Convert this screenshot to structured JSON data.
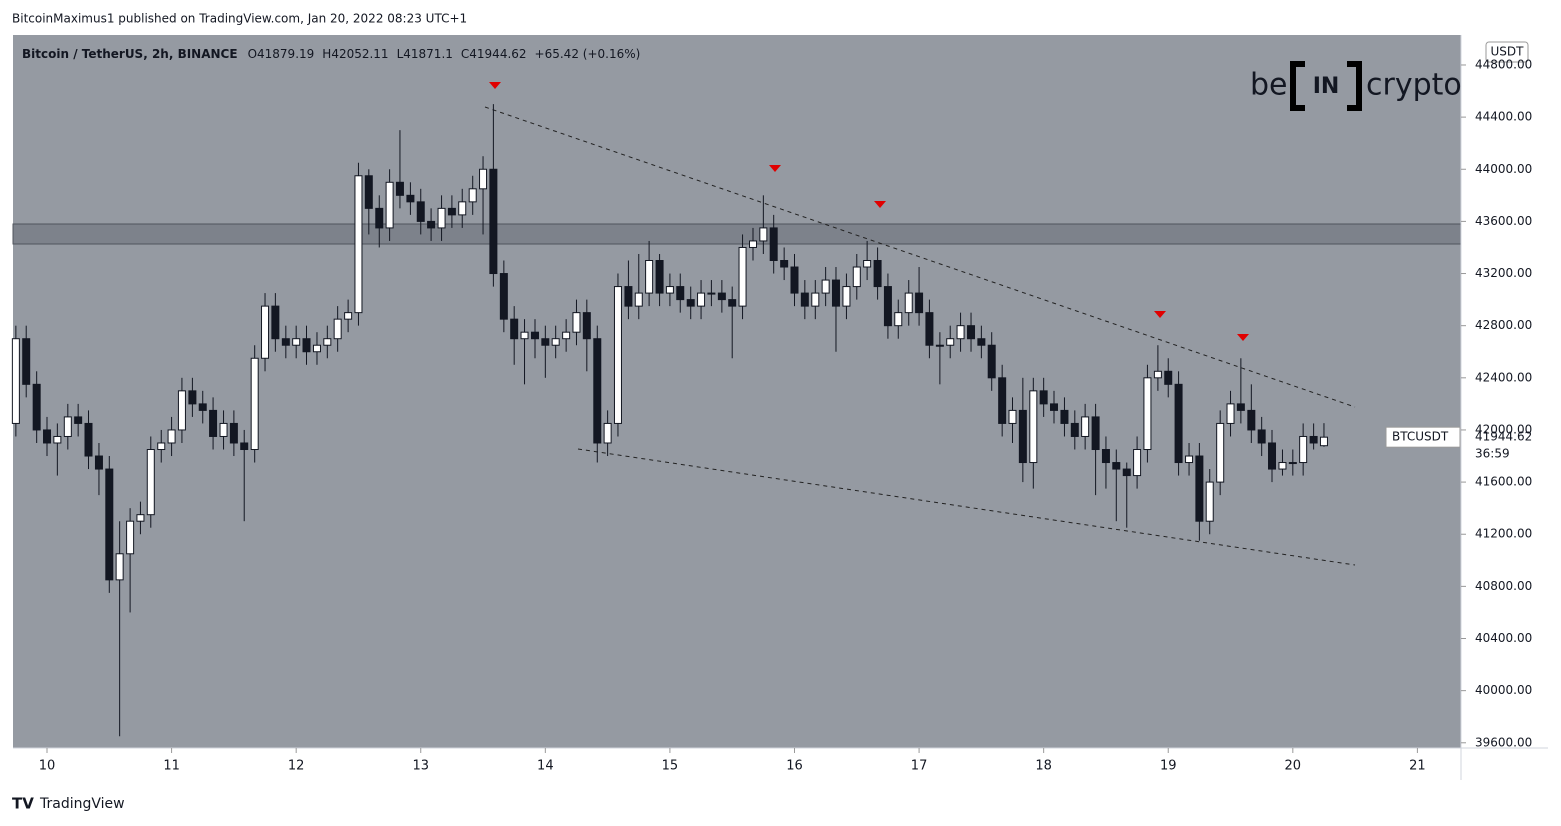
{
  "header": "BitcoinMaximus1 published on TradingView.com, Jan 20, 2022 08:23 UTC+1",
  "footer": "TradingView",
  "logo": {
    "left": "be",
    "middle": "IN",
    "right": "crypto"
  },
  "chart_data": {
    "type": "candlestick",
    "title": "Bitcoin / TetherUS, 2h, BINANCE",
    "ohlc_labels": [
      "O",
      "H",
      "L",
      "C"
    ],
    "change": "+65.42 (+0.16%)",
    "currency": "USDT",
    "symbol": "BTCUSDT",
    "countdown": "36:59",
    "up_color": "#ffffff",
    "down_color": "#131722",
    "background": "#959aa2",
    "xlim": [
      9.727,
      21.35
    ],
    "xticks": [
      10,
      11,
      12,
      13,
      14,
      15,
      16,
      17,
      18,
      19,
      20,
      21
    ],
    "ylim": [
      39560,
      45030
    ],
    "yticks": [
      {
        "value": 44800,
        "label": "44800.00"
      },
      {
        "value": 44400,
        "label": "44400.00"
      },
      {
        "value": 44000,
        "label": "44000.00"
      },
      {
        "value": 43600,
        "label": "43600.00"
      },
      {
        "value": 43200,
        "label": "43200.00"
      },
      {
        "value": 42800,
        "label": "42800.00"
      },
      {
        "value": 42400,
        "label": "42400.00"
      },
      {
        "value": 42000,
        "label": "42000.00"
      },
      {
        "value": 41600,
        "label": "41600.00"
      },
      {
        "value": 41200,
        "label": "41200.00"
      },
      {
        "value": 40800,
        "label": "40800.00"
      },
      {
        "value": 40400,
        "label": "40400.00"
      },
      {
        "value": 40000,
        "label": "40000.00"
      },
      {
        "value": 39600,
        "label": "39600.00"
      }
    ],
    "x": [
      9.75,
      9.833,
      9.917,
      10,
      10.083,
      10.167,
      10.25,
      10.333,
      10.417,
      10.5,
      10.583,
      10.667,
      10.75,
      10.833,
      10.917,
      11,
      11.083,
      11.167,
      11.25,
      11.333,
      11.417,
      11.5,
      11.583,
      11.667,
      11.75,
      11.833,
      11.917,
      12,
      12.083,
      12.167,
      12.25,
      12.333,
      12.417,
      12.5,
      12.583,
      12.667,
      12.75,
      12.833,
      12.917,
      13,
      13.083,
      13.167,
      13.25,
      13.333,
      13.417,
      13.5,
      13.583,
      13.667,
      13.75,
      13.833,
      13.917,
      14,
      14.083,
      14.167,
      14.25,
      14.333,
      14.417,
      14.5,
      14.583,
      14.667,
      14.75,
      14.833,
      14.917,
      15,
      15.083,
      15.167,
      15.25,
      15.333,
      15.417,
      15.5,
      15.583,
      15.667,
      15.75,
      15.833,
      15.917,
      16,
      16.083,
      16.167,
      16.25,
      16.333,
      16.417,
      16.5,
      16.583,
      16.667,
      16.75,
      16.833,
      16.917,
      17,
      17.083,
      17.167,
      17.25,
      17.333,
      17.417,
      17.5,
      17.583,
      17.667,
      17.75,
      17.833,
      17.917,
      18,
      18.083,
      18.167,
      18.25,
      18.333,
      18.417,
      18.5,
      18.583,
      18.667,
      18.75,
      18.833,
      18.917,
      19,
      19.083,
      19.167,
      19.25,
      19.333,
      19.417,
      19.5,
      19.583,
      19.667,
      19.75,
      19.833,
      19.917,
      20,
      20.083,
      20.167,
      20.25
    ],
    "open": [
      42050,
      42700,
      42350,
      42000,
      41900,
      41950,
      42100,
      42050,
      41800,
      41700,
      40850,
      41050,
      41300,
      41350,
      41850,
      41900,
      42000,
      42300,
      42200,
      42150,
      41950,
      42050,
      41900,
      41850,
      42550,
      42950,
      42700,
      42650,
      42700,
      42600,
      42650,
      42700,
      42850,
      42900,
      43950,
      43700,
      43550,
      43900,
      43800,
      43750,
      43600,
      43550,
      43700,
      43650,
      43750,
      43850,
      44000,
      43200,
      42850,
      42700,
      42750,
      42700,
      42650,
      42700,
      42750,
      42900,
      42700,
      41900,
      42050,
      43100,
      42950,
      43050,
      43300,
      43050,
      43100,
      43000,
      42950,
      43050,
      43050,
      43000,
      42950,
      43400,
      43450,
      43550,
      43300,
      43250,
      43050,
      42950,
      43050,
      43150,
      42950,
      43100,
      43250,
      43300,
      43100,
      42800,
      42900,
      43050,
      42900,
      42650,
      42650,
      42700,
      42800,
      42700,
      42650,
      42400,
      42050,
      42150,
      41750,
      42300,
      42200,
      42150,
      42050,
      41950,
      42100,
      41850,
      41750,
      41700,
      41650,
      41850,
      42400,
      42450,
      42350,
      41750,
      41800,
      41300,
      41600,
      42050,
      42200,
      42150,
      42000,
      41900,
      41700,
      41750,
      41750,
      41950,
      41879.19
    ],
    "high": [
      42800,
      42800,
      42450,
      42100,
      42050,
      42200,
      42200,
      42150,
      41900,
      41800,
      41300,
      41400,
      41450,
      41950,
      42000,
      42100,
      42400,
      42400,
      42300,
      42250,
      42150,
      42150,
      42000,
      42650,
      43050,
      43050,
      42800,
      42800,
      42800,
      42750,
      42800,
      42950,
      43000,
      44050,
      44000,
      43800,
      44000,
      44300,
      43900,
      43850,
      43700,
      43800,
      43800,
      43850,
      43950,
      44100,
      44500,
      43300,
      42950,
      42850,
      42850,
      42800,
      42800,
      42850,
      43000,
      43000,
      42800,
      42150,
      43200,
      43300,
      43350,
      43450,
      43350,
      43200,
      43200,
      43100,
      43150,
      43150,
      43150,
      43100,
      43500,
      43550,
      43800,
      43650,
      43400,
      43350,
      43150,
      43150,
      43250,
      43250,
      43200,
      43350,
      43450,
      43400,
      43200,
      43000,
      43150,
      43250,
      43000,
      42750,
      42800,
      42900,
      42900,
      42800,
      42750,
      42500,
      42250,
      42400,
      42400,
      42400,
      42300,
      42250,
      42150,
      42200,
      42200,
      41950,
      41850,
      41750,
      41950,
      42500,
      42650,
      42550,
      42450,
      41900,
      41900,
      41700,
      42150,
      42300,
      42550,
      42350,
      42100,
      42000,
      41850,
      41850,
      42050,
      42050,
      42052.11
    ],
    "low": [
      41950,
      42250,
      41900,
      41800,
      41650,
      41850,
      41950,
      41700,
      41500,
      40750,
      39650,
      40600,
      41200,
      41250,
      41750,
      41800,
      41900,
      42100,
      42050,
      41850,
      41850,
      41800,
      41300,
      41750,
      42450,
      42600,
      42550,
      42550,
      42500,
      42500,
      42550,
      42600,
      42750,
      42800,
      43500,
      43400,
      43450,
      43700,
      43650,
      43500,
      43450,
      43450,
      43550,
      43550,
      43650,
      43500,
      43100,
      42750,
      42500,
      42350,
      42550,
      42400,
      42550,
      42600,
      42650,
      42450,
      41750,
      41800,
      41950,
      42850,
      42850,
      42950,
      42950,
      42950,
      42900,
      42850,
      42850,
      42950,
      42900,
      42550,
      42850,
      43300,
      43350,
      43200,
      43150,
      42950,
      42850,
      42850,
      42950,
      42600,
      42850,
      43000,
      43150,
      43000,
      42700,
      42700,
      42800,
      42800,
      42550,
      42350,
      42550,
      42600,
      42600,
      42550,
      42300,
      41950,
      41900,
      41600,
      41550,
      42100,
      42050,
      41950,
      41850,
      41850,
      41500,
      41550,
      41300,
      41250,
      41550,
      41750,
      42300,
      42250,
      41650,
      41650,
      41150,
      41200,
      41500,
      41950,
      42050,
      41900,
      41800,
      41600,
      41650,
      41650,
      41650,
      41850,
      41871.1
    ],
    "close": [
      42700,
      42350,
      42000,
      41900,
      41950,
      42100,
      42050,
      41800,
      41700,
      40850,
      41050,
      41300,
      41350,
      41850,
      41900,
      42000,
      42300,
      42200,
      42150,
      41950,
      42050,
      41900,
      41850,
      42550,
      42950,
      42700,
      42650,
      42700,
      42600,
      42650,
      42700,
      42850,
      42900,
      43950,
      43700,
      43550,
      43900,
      43800,
      43750,
      43600,
      43550,
      43700,
      43650,
      43750,
      43850,
      44000,
      43200,
      42850,
      42700,
      42750,
      42700,
      42650,
      42700,
      42750,
      42900,
      42700,
      41900,
      42050,
      43100,
      42950,
      43050,
      43300,
      43050,
      43100,
      43000,
      42950,
      43050,
      43050,
      43000,
      42950,
      43400,
      43450,
      43550,
      43300,
      43250,
      43050,
      42950,
      43050,
      43150,
      42950,
      43100,
      43250,
      43300,
      43100,
      42800,
      42900,
      43050,
      42900,
      42650,
      42650,
      42700,
      42800,
      42700,
      42650,
      42400,
      42050,
      42150,
      41750,
      42300,
      42200,
      42150,
      42050,
      41950,
      42100,
      41850,
      41750,
      41700,
      41650,
      41850,
      42400,
      42450,
      42350,
      41750,
      41800,
      41300,
      41600,
      42050,
      42200,
      42150,
      42000,
      41900,
      41700,
      41750,
      41750,
      41950,
      41900,
      41944.62
    ]
  }
}
